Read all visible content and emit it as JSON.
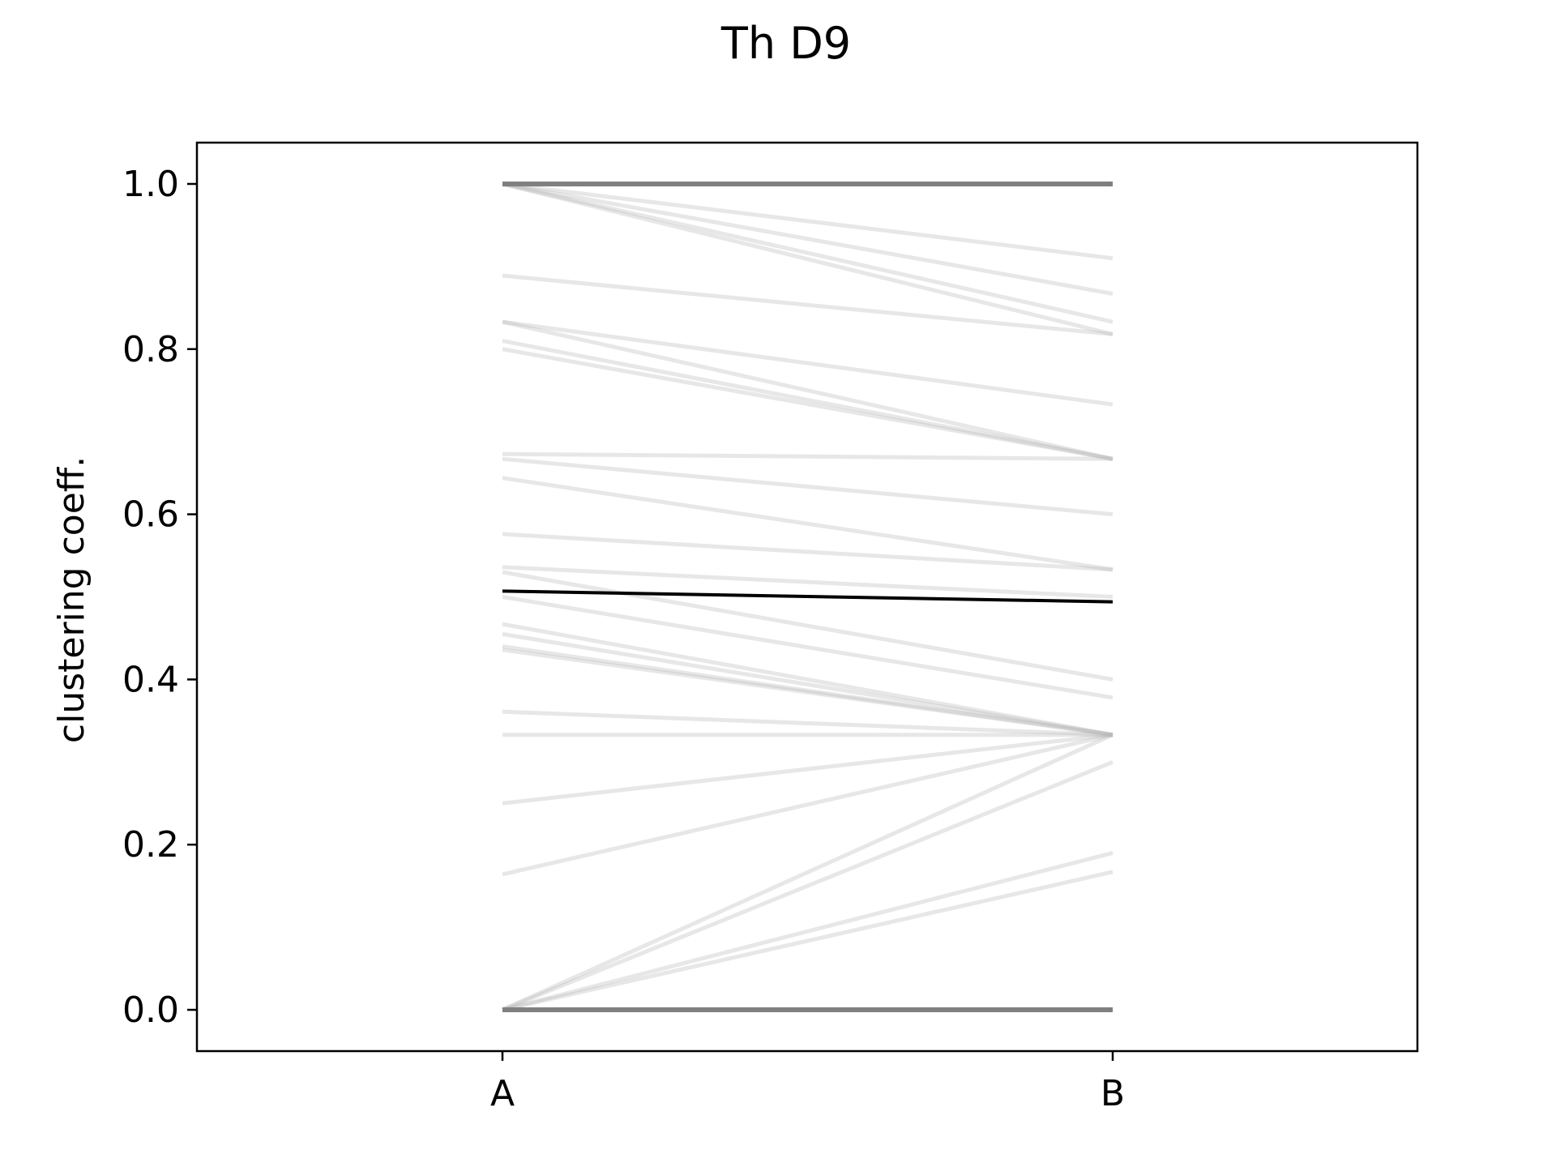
{
  "chart_data": {
    "type": "line",
    "title": "Th D9",
    "xlabel": "",
    "ylabel": "clustering coeff.",
    "categories": [
      "A",
      "B"
    ],
    "ylim": [
      -0.05,
      1.05
    ],
    "yticks": [
      "0.0",
      "0.2",
      "0.4",
      "0.6",
      "0.8",
      "1.0"
    ],
    "grid": false,
    "colors": {
      "individual": "#bbbbbb",
      "overlap": "#808080",
      "mean": "#000000"
    },
    "series": [
      {
        "values": [
          1.0,
          1.0
        ]
      },
      {
        "values": [
          1.0,
          0.91
        ]
      },
      {
        "values": [
          1.0,
          0.867
        ]
      },
      {
        "values": [
          1.0,
          0.833
        ]
      },
      {
        "values": [
          1.0,
          0.818
        ]
      },
      {
        "values": [
          0.889,
          0.818
        ]
      },
      {
        "values": [
          0.833,
          0.733
        ]
      },
      {
        "values": [
          0.833,
          0.667
        ]
      },
      {
        "values": [
          0.81,
          0.667
        ]
      },
      {
        "values": [
          0.8,
          0.667
        ]
      },
      {
        "values": [
          0.673,
          0.667
        ]
      },
      {
        "values": [
          0.667,
          0.6
        ]
      },
      {
        "values": [
          0.644,
          0.533
        ]
      },
      {
        "values": [
          0.576,
          0.533
        ]
      },
      {
        "values": [
          0.536,
          0.5
        ]
      },
      {
        "values": [
          0.53,
          0.4
        ]
      },
      {
        "values": [
          0.5,
          0.378
        ]
      },
      {
        "values": [
          0.467,
          0.333
        ]
      },
      {
        "values": [
          0.455,
          0.333
        ]
      },
      {
        "values": [
          0.44,
          0.333
        ]
      },
      {
        "values": [
          0.436,
          0.333
        ]
      },
      {
        "values": [
          0.361,
          0.333
        ]
      },
      {
        "values": [
          0.333,
          0.333
        ]
      },
      {
        "values": [
          0.25,
          0.333
        ]
      },
      {
        "values": [
          0.164,
          0.333
        ]
      },
      {
        "values": [
          0.0,
          0.333
        ]
      },
      {
        "values": [
          0.0,
          0.3
        ]
      },
      {
        "values": [
          0.0,
          0.19
        ]
      },
      {
        "values": [
          0.0,
          0.167
        ]
      },
      {
        "values": [
          0.0,
          0.0
        ]
      }
    ],
    "mean": {
      "values": [
        0.507,
        0.494
      ]
    }
  }
}
